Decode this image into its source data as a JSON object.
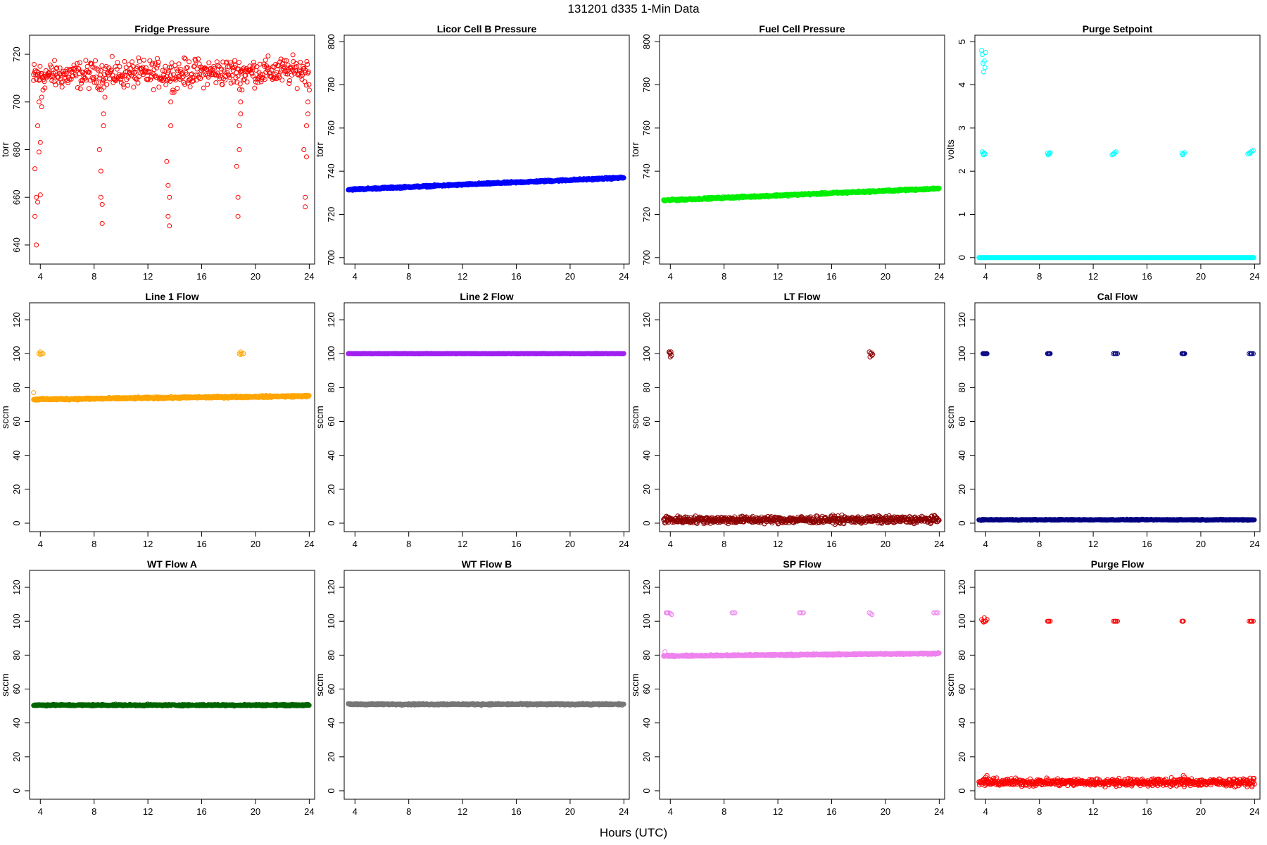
{
  "figure": {
    "title": "131201    d335    1-Min Data",
    "xlabel": "Hours (UTC)"
  },
  "chart_data": [
    {
      "type": "scatter",
      "title": "Fridge Pressure",
      "ylabel": "torr",
      "color": "#ff0000",
      "xlim": [
        3.2,
        24.4
      ],
      "ylim": [
        632,
        728
      ],
      "xticks": [
        4,
        8,
        12,
        16,
        20,
        24
      ],
      "yticks": [
        640,
        660,
        680,
        700,
        720
      ],
      "series": [
        {
          "kind": "noisy",
          "x": [
            3.5,
            24.0
          ],
          "y": [
            711,
            713
          ],
          "noise": 4,
          "step": 0.04
        },
        {
          "kind": "scatter",
          "x": [
            3.5,
            3.6,
            3.6,
            3.7,
            3.7,
            3.8,
            3.8,
            3.9,
            3.9,
            4.0,
            4.0,
            4.1,
            4.1,
            4.2,
            8.4,
            8.5,
            8.5,
            8.6,
            8.6,
            8.7,
            8.7,
            8.8,
            13.4,
            13.5,
            13.5,
            13.6,
            13.6,
            13.7,
            13.7,
            13.8,
            18.6,
            18.7,
            18.7,
            18.8,
            18.8,
            18.9,
            18.9,
            19.0,
            23.6,
            23.7,
            23.7,
            23.8,
            23.8,
            23.9,
            23.9,
            24.0
          ],
          "y": [
            709,
            652,
            672,
            640,
            660,
            690,
            658,
            679,
            700,
            683,
            661,
            698,
            702,
            705,
            680,
            671,
            660,
            657,
            649,
            690,
            695,
            702,
            675,
            665,
            652,
            660,
            648,
            690,
            700,
            704,
            673,
            660,
            652,
            680,
            690,
            700,
            695,
            705,
            680,
            660,
            656,
            677,
            690,
            700,
            695,
            705
          ]
        }
      ]
    },
    {
      "type": "scatter",
      "title": "Licor Cell B Pressure",
      "ylabel": "torr",
      "color": "#0000ff",
      "xlim": [
        3.2,
        24.4
      ],
      "ylim": [
        697,
        803
      ],
      "xticks": [
        4,
        8,
        12,
        16,
        20,
        24
      ],
      "yticks": [
        700,
        720,
        740,
        760,
        780,
        800
      ],
      "series": [
        {
          "kind": "noisy",
          "x": [
            3.5,
            24.0
          ],
          "y": [
            731.5,
            737
          ],
          "noise": 0.3,
          "step": 0.03
        }
      ]
    },
    {
      "type": "scatter",
      "title": "Fuel Cell Pressure",
      "ylabel": "torr",
      "color": "#00ee00",
      "xlim": [
        3.2,
        24.4
      ],
      "ylim": [
        697,
        803
      ],
      "xticks": [
        4,
        8,
        12,
        16,
        20,
        24
      ],
      "yticks": [
        700,
        720,
        740,
        760,
        780,
        800
      ],
      "series": [
        {
          "kind": "noisy",
          "x": [
            3.5,
            24.0
          ],
          "y": [
            726.5,
            732
          ],
          "noise": 0.3,
          "step": 0.03
        }
      ]
    },
    {
      "type": "scatter",
      "title": "Purge Setpoint",
      "ylabel": "volts",
      "color": "#00ffff",
      "xlim": [
        3.2,
        24.4
      ],
      "ylim": [
        -0.15,
        5.15
      ],
      "xticks": [
        4,
        8,
        12,
        16,
        20,
        24
      ],
      "yticks": [
        0,
        1,
        2,
        3,
        4,
        5
      ],
      "series": [
        {
          "kind": "noisy",
          "x": [
            3.5,
            24.0
          ],
          "y": [
            0,
            0
          ],
          "noise": 0,
          "step": 0.05
        },
        {
          "kind": "scatter",
          "x": [
            3.7,
            3.75,
            3.8,
            3.85,
            3.9,
            3.95,
            4.0,
            3.75,
            3.8,
            3.85,
            3.9,
            3.95,
            8.6,
            8.7,
            8.8,
            8.65,
            8.75,
            13.4,
            13.5,
            13.6,
            13.7,
            13.55,
            18.6,
            18.7,
            18.8,
            18.65,
            23.5,
            23.6,
            23.7,
            23.8,
            23.9,
            23.65
          ],
          "y": [
            4.8,
            4.7,
            4.5,
            4.3,
            4.55,
            4.4,
            4.75,
            2.45,
            2.4,
            2.38,
            2.42,
            2.4,
            2.42,
            2.4,
            2.43,
            2.38,
            2.41,
            2.38,
            2.4,
            2.43,
            2.45,
            2.4,
            2.42,
            2.4,
            2.43,
            2.38,
            2.4,
            2.42,
            2.44,
            2.46,
            2.48,
            2.41
          ]
        }
      ]
    },
    {
      "type": "scatter",
      "title": "Line 1 Flow",
      "ylabel": "sccm",
      "color": "#ffa500",
      "xlim": [
        3.2,
        24.4
      ],
      "ylim": [
        -5,
        130
      ],
      "xticks": [
        4,
        8,
        12,
        16,
        20,
        24
      ],
      "yticks": [
        0,
        20,
        40,
        60,
        80,
        100,
        120
      ],
      "series": [
        {
          "kind": "noisy",
          "x": [
            3.5,
            24.0
          ],
          "y": [
            73,
            75
          ],
          "noise": 0.4,
          "step": 0.03
        },
        {
          "kind": "scatter",
          "x": [
            3.9,
            4.0,
            4.1,
            4.2,
            4.0,
            18.8,
            18.9,
            19.0,
            19.1,
            18.9,
            3.5
          ],
          "y": [
            100,
            101,
            100,
            100,
            99.5,
            100,
            101,
            100,
            100,
            99.5,
            77
          ]
        }
      ]
    },
    {
      "type": "scatter",
      "title": "Line 2 Flow",
      "ylabel": "sccm",
      "color": "#a020f0",
      "xlim": [
        3.2,
        24.4
      ],
      "ylim": [
        -5,
        130
      ],
      "xticks": [
        4,
        8,
        12,
        16,
        20,
        24
      ],
      "yticks": [
        0,
        20,
        40,
        60,
        80,
        100,
        120
      ],
      "series": [
        {
          "kind": "noisy",
          "x": [
            3.5,
            24.0
          ],
          "y": [
            100,
            100
          ],
          "noise": 0.1,
          "step": 0.03
        }
      ]
    },
    {
      "type": "scatter",
      "title": "LT Flow",
      "ylabel": "sccm",
      "color": "#8b0000",
      "xlim": [
        3.2,
        24.4
      ],
      "ylim": [
        -5,
        130
      ],
      "xticks": [
        4,
        8,
        12,
        16,
        20,
        24
      ],
      "yticks": [
        0,
        20,
        40,
        60,
        80,
        100,
        120
      ],
      "series": [
        {
          "kind": "noisy",
          "x": [
            3.5,
            24.0
          ],
          "y": [
            2,
            2
          ],
          "noise": 1.5,
          "step": 0.03
        },
        {
          "kind": "scatter",
          "x": [
            3.9,
            4.0,
            4.1,
            4.0,
            3.95,
            4.05,
            18.8,
            18.9,
            19.0,
            18.85,
            18.95,
            19.05
          ],
          "y": [
            101,
            100,
            99,
            98,
            100.5,
            101,
            101,
            100,
            99,
            98,
            100.5,
            99.5
          ]
        }
      ]
    },
    {
      "type": "scatter",
      "title": "Cal Flow",
      "ylabel": "sccm",
      "color": "#000080",
      "xlim": [
        3.2,
        24.4
      ],
      "ylim": [
        -5,
        130
      ],
      "xticks": [
        4,
        8,
        12,
        16,
        20,
        24
      ],
      "yticks": [
        0,
        20,
        40,
        60,
        80,
        100,
        120
      ],
      "series": [
        {
          "kind": "noisy",
          "x": [
            3.5,
            24.0
          ],
          "y": [
            2,
            2
          ],
          "noise": 0.2,
          "step": 0.04
        },
        {
          "kind": "scatter",
          "x": [
            3.8,
            3.9,
            4.0,
            4.1,
            3.85,
            3.95,
            4.05,
            8.6,
            8.7,
            8.8,
            8.65,
            8.75,
            13.5,
            13.6,
            13.7,
            13.8,
            13.65,
            18.6,
            18.7,
            18.8,
            18.65,
            18.75,
            23.6,
            23.7,
            23.8,
            23.9,
            23.75
          ],
          "y": [
            100,
            100,
            100,
            100,
            100,
            100,
            100,
            100,
            100,
            100,
            100,
            100,
            100,
            100,
            100,
            100,
            100,
            100,
            100,
            100,
            100,
            100,
            100,
            100,
            100,
            100,
            100
          ]
        }
      ]
    },
    {
      "type": "scatter",
      "title": "WT Flow A",
      "ylabel": "sccm",
      "color": "#006400",
      "xlim": [
        3.2,
        24.4
      ],
      "ylim": [
        -5,
        130
      ],
      "xticks": [
        4,
        8,
        12,
        16,
        20,
        24
      ],
      "yticks": [
        0,
        20,
        40,
        60,
        80,
        100,
        120
      ],
      "series": [
        {
          "kind": "noisy",
          "x": [
            3.5,
            24.0
          ],
          "y": [
            50.5,
            50.5
          ],
          "noise": 0.3,
          "step": 0.03
        }
      ]
    },
    {
      "type": "scatter",
      "title": "WT Flow B",
      "ylabel": "sccm",
      "color": "#777777",
      "xlim": [
        3.2,
        24.4
      ],
      "ylim": [
        -5,
        130
      ],
      "xticks": [
        4,
        8,
        12,
        16,
        20,
        24
      ],
      "yticks": [
        0,
        20,
        40,
        60,
        80,
        100,
        120
      ],
      "series": [
        {
          "kind": "noisy",
          "x": [
            3.5,
            24.0
          ],
          "y": [
            51,
            51
          ],
          "noise": 0.3,
          "step": 0.03
        }
      ]
    },
    {
      "type": "scatter",
      "title": "SP Flow",
      "ylabel": "sccm",
      "color": "#ee82ee",
      "xlim": [
        3.2,
        24.4
      ],
      "ylim": [
        -5,
        130
      ],
      "xticks": [
        4,
        8,
        12,
        16,
        20,
        24
      ],
      "yticks": [
        0,
        20,
        40,
        60,
        80,
        100,
        120
      ],
      "series": [
        {
          "kind": "noisy",
          "x": [
            3.5,
            24.0
          ],
          "y": [
            79.5,
            81
          ],
          "noise": 0.3,
          "step": 0.03
        },
        {
          "kind": "scatter",
          "x": [
            3.7,
            3.8,
            3.9,
            4.0,
            4.1,
            3.75,
            8.6,
            8.7,
            8.8,
            13.6,
            13.7,
            13.8,
            13.9,
            18.8,
            18.9,
            19.0,
            23.6,
            23.7,
            23.8,
            23.9,
            3.6
          ],
          "y": [
            105,
            105,
            105,
            104.5,
            104,
            105,
            105,
            105,
            105,
            105,
            105,
            105,
            105,
            105,
            104.5,
            104,
            105,
            105,
            105,
            105,
            82
          ]
        }
      ]
    },
    {
      "type": "scatter",
      "title": "Purge Flow",
      "ylabel": "sccm",
      "color": "#ff0000",
      "xlim": [
        3.2,
        24.4
      ],
      "ylim": [
        -5,
        130
      ],
      "xticks": [
        4,
        8,
        12,
        16,
        20,
        24
      ],
      "yticks": [
        0,
        20,
        40,
        60,
        80,
        100,
        120
      ],
      "series": [
        {
          "kind": "noisy",
          "x": [
            3.5,
            24.0
          ],
          "y": [
            5,
            5
          ],
          "noise": 1.5,
          "step": 0.03
        },
        {
          "kind": "scatter",
          "x": [
            3.7,
            3.8,
            3.9,
            4.0,
            4.1,
            3.85,
            3.95,
            8.6,
            8.7,
            8.8,
            8.65,
            13.5,
            13.6,
            13.7,
            13.8,
            13.65,
            18.6,
            18.7,
            18.65,
            23.6,
            23.7,
            23.8,
            23.9,
            23.75,
            4.0,
            4.1,
            4.2,
            18.7,
            18.8
          ],
          "y": [
            101,
            100,
            102,
            100,
            101,
            99.5,
            100,
            100,
            100,
            100,
            100,
            100,
            100,
            100,
            100,
            100,
            100,
            100,
            100,
            100,
            100,
            100,
            100,
            100,
            8,
            9,
            7,
            9,
            8
          ]
        }
      ]
    }
  ]
}
